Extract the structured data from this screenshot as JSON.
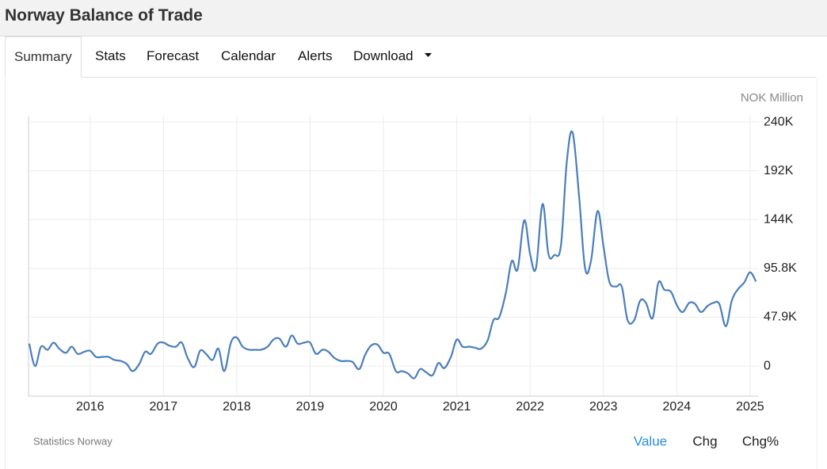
{
  "header": {
    "title": "Norway Balance of Trade"
  },
  "tabs": [
    "Summary",
    "Stats",
    "Forecast",
    "Calendar",
    "Alerts",
    "Download"
  ],
  "source": "Statistics Norway",
  "buttons": [
    "Value",
    "Chg",
    "Chg%"
  ],
  "chart_data": {
    "type": "line",
    "y_label": "NOK Million",
    "color": "#4a7ebb",
    "grid": true,
    "x": [
      2015.17,
      2015.25,
      2015.33,
      2015.42,
      2015.5,
      2015.58,
      2015.67,
      2015.75,
      2015.83,
      2015.92,
      2016,
      2016.08,
      2016.17,
      2016.25,
      2016.33,
      2016.42,
      2016.5,
      2016.58,
      2016.67,
      2016.75,
      2016.83,
      2016.92,
      2017,
      2017.08,
      2017.17,
      2017.25,
      2017.33,
      2017.42,
      2017.5,
      2017.58,
      2017.67,
      2017.75,
      2017.83,
      2017.92,
      2018,
      2018.08,
      2018.17,
      2018.25,
      2018.33,
      2018.42,
      2018.5,
      2018.58,
      2018.67,
      2018.75,
      2018.83,
      2018.92,
      2019,
      2019.08,
      2019.17,
      2019.25,
      2019.33,
      2019.42,
      2019.5,
      2019.58,
      2019.67,
      2019.75,
      2019.83,
      2019.92,
      2020,
      2020.08,
      2020.17,
      2020.25,
      2020.33,
      2020.42,
      2020.5,
      2020.58,
      2020.67,
      2020.75,
      2020.83,
      2020.92,
      2021,
      2021.08,
      2021.17,
      2021.25,
      2021.33,
      2021.42,
      2021.5,
      2021.58,
      2021.67,
      2021.75,
      2021.83,
      2021.92,
      2022,
      2022.08,
      2022.17,
      2022.25,
      2022.33,
      2022.42,
      2022.5,
      2022.58,
      2022.67,
      2022.75,
      2022.83,
      2022.92,
      2023,
      2023.08,
      2023.17,
      2023.25,
      2023.33,
      2023.42,
      2023.5,
      2023.58,
      2023.67,
      2023.75,
      2023.83,
      2023.92,
      2024,
      2024.08,
      2024.17,
      2024.25,
      2024.33,
      2024.42,
      2024.5,
      2024.58,
      2024.67,
      2024.75,
      2024.83,
      2024.92,
      2025,
      2025.08
    ],
    "values": [
      22000,
      0,
      19000,
      16000,
      23000,
      17000,
      13000,
      19000,
      12000,
      14000,
      15000,
      9000,
      9000,
      9000,
      6000,
      5000,
      2000,
      -5000,
      2000,
      14000,
      12000,
      22000,
      23000,
      20000,
      19000,
      23000,
      8000,
      -1000,
      15000,
      12000,
      6000,
      17000,
      -5000,
      23000,
      28000,
      19000,
      16000,
      16000,
      16000,
      19000,
      26000,
      27000,
      19000,
      30000,
      22000,
      23000,
      23000,
      12000,
      16000,
      14000,
      8000,
      5000,
      5000,
      4000,
      -3000,
      11000,
      20000,
      21000,
      13000,
      12000,
      -5000,
      -5000,
      -7000,
      -12000,
      -3000,
      -6000,
      -9000,
      3000,
      -2000,
      9000,
      26000,
      19000,
      19000,
      18000,
      17000,
      25000,
      45000,
      48000,
      72000,
      103000,
      95000,
      143000,
      110000,
      96000,
      159000,
      110000,
      109000,
      118000,
      200000,
      229000,
      165000,
      96000,
      103000,
      152000,
      118000,
      83000,
      78000,
      78000,
      45000,
      45000,
      64000,
      62000,
      47000,
      82000,
      75000,
      73000,
      60000,
      53000,
      62000,
      61000,
      53000,
      59000,
      62000,
      61000,
      39000,
      64000,
      75000,
      82000,
      92000,
      83000
    ],
    "xlim": [
      2015.16,
      2025.12
    ],
    "xticks": [
      2016,
      2017,
      2018,
      2019,
      2020,
      2021,
      2022,
      2023,
      2024,
      2025
    ],
    "ylim": [
      -29500,
      245000
    ],
    "yticks": [
      0,
      {
        "value": 47900,
        "label": "47.9K"
      },
      {
        "value": 95800,
        "label": "95.8K"
      },
      {
        "value": 143700,
        "label": "144K"
      },
      {
        "value": 191600,
        "label": "192K"
      },
      {
        "value": 239500,
        "label": "240K"
      }
    ]
  }
}
